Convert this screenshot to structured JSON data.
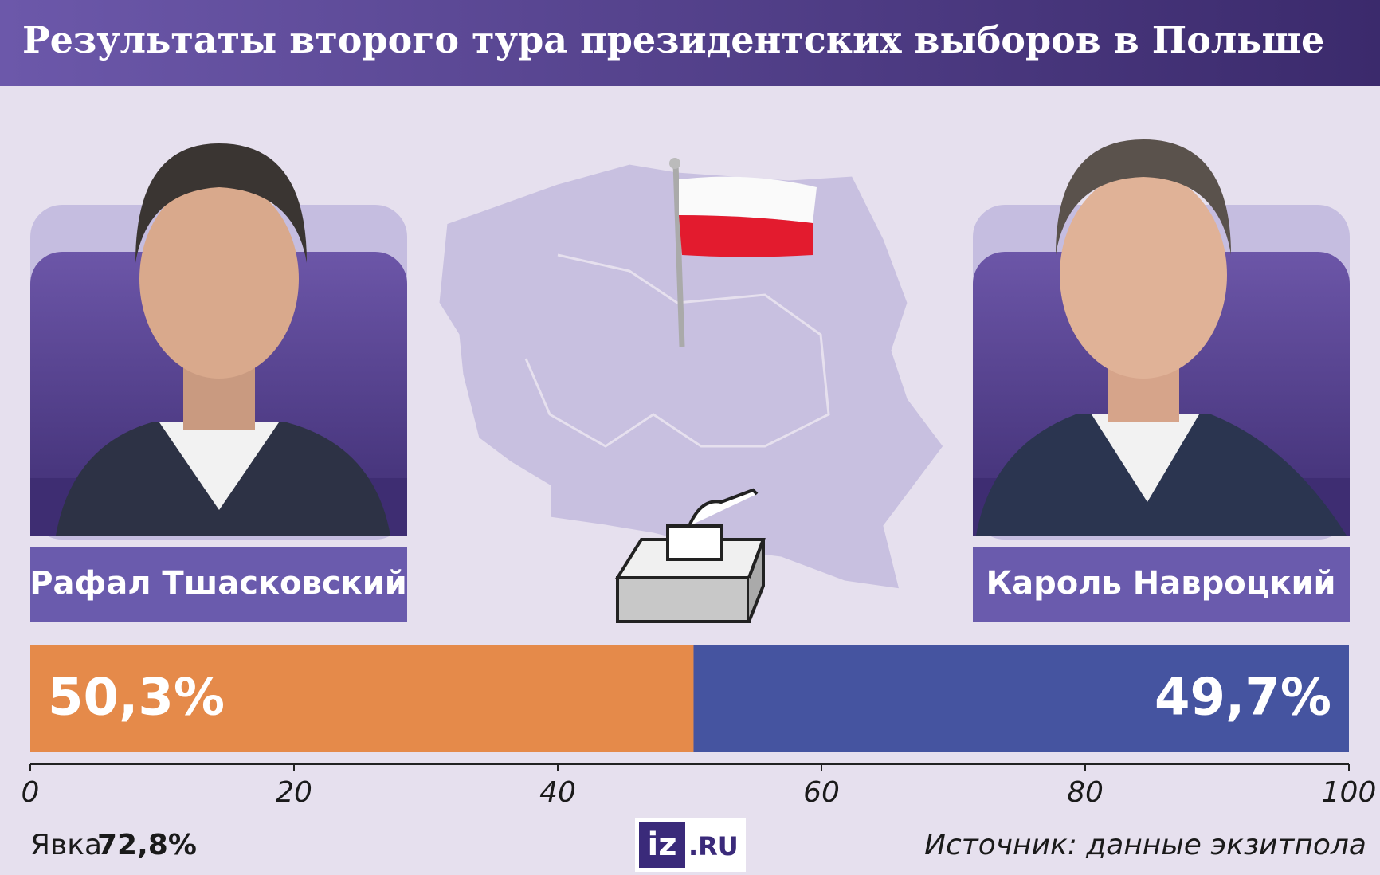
{
  "chart_data": {
    "type": "stacked-bar-horizontal",
    "title": "Результаты второго тура президентских выборов в Польше",
    "series": [
      {
        "name": "Рафал Тшасковский",
        "color": "#e58a4a",
        "values": [
          50.3
        ],
        "value_labels": [
          "50,3%"
        ]
      },
      {
        "name": "Кароль Навроцкий",
        "color": "#4554a0",
        "values": [
          49.7
        ],
        "value_labels": [
          "49,7%"
        ]
      }
    ],
    "xlim": [
      0,
      100
    ],
    "xticks": [
      0,
      20,
      40,
      60,
      80,
      100
    ],
    "turnout": {
      "label": "Явка",
      "value": "72,8%"
    },
    "source": "Источник: данные экзитпола",
    "logo": {
      "mark": "iz",
      "domain": ".RU"
    }
  }
}
